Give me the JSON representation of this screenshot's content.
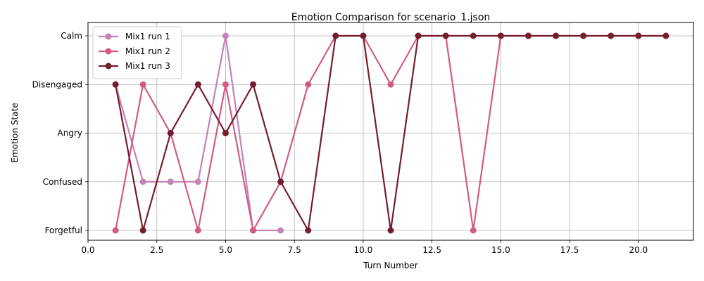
{
  "chart_data": {
    "type": "line",
    "title": "Emotion Comparison for scenario_1.json",
    "xlabel": "Turn Number",
    "ylabel": "Emotion State",
    "xlim": [
      0,
      22
    ],
    "xticks": [
      0.0,
      2.5,
      5.0,
      7.5,
      10.0,
      12.5,
      15.0,
      17.5,
      20.0
    ],
    "xtick_labels": [
      "0.0",
      "2.5",
      "5.0",
      "7.5",
      "10.0",
      "12.5",
      "15.0",
      "17.5",
      "20.0"
    ],
    "categories_y": [
      "Forgetful",
      "Confused",
      "Angry",
      "Disengaged",
      "Calm"
    ],
    "grid": true,
    "legend_position": "top-left",
    "series": [
      {
        "name": "Mix1 run 1",
        "color": "#c283b5",
        "x": [
          1,
          2,
          3,
          4,
          5,
          6,
          7
        ],
        "y": [
          "Disengaged",
          "Confused",
          "Confused",
          "Confused",
          "Calm",
          "Forgetful",
          "Forgetful"
        ]
      },
      {
        "name": "Mix1 run 2",
        "color": "#d15b86",
        "x": [
          1,
          2,
          3,
          4,
          5,
          6,
          7,
          8,
          9,
          10,
          11,
          12,
          13,
          14,
          15,
          16,
          17,
          18,
          19,
          20,
          21
        ],
        "y": [
          "Forgetful",
          "Disengaged",
          "Angry",
          "Forgetful",
          "Disengaged",
          "Forgetful",
          "Confused",
          "Disengaged",
          "Calm",
          "Calm",
          "Disengaged",
          "Calm",
          "Calm",
          "Forgetful",
          "Calm",
          "Calm",
          "Calm",
          "Calm",
          "Calm",
          "Calm",
          "Calm"
        ]
      },
      {
        "name": "Mix1 run 3",
        "color": "#741d2c",
        "x": [
          1,
          2,
          3,
          4,
          5,
          6,
          7,
          8,
          9,
          10,
          11,
          12,
          13,
          14,
          15,
          16,
          17,
          18,
          19,
          20,
          21
        ],
        "y": [
          "Disengaged",
          "Forgetful",
          "Angry",
          "Disengaged",
          "Angry",
          "Disengaged",
          "Confused",
          "Forgetful",
          "Calm",
          "Calm",
          "Forgetful",
          "Calm",
          "Calm",
          "Calm",
          "Calm",
          "Calm",
          "Calm",
          "Calm",
          "Calm",
          "Calm",
          "Calm"
        ]
      }
    ]
  }
}
